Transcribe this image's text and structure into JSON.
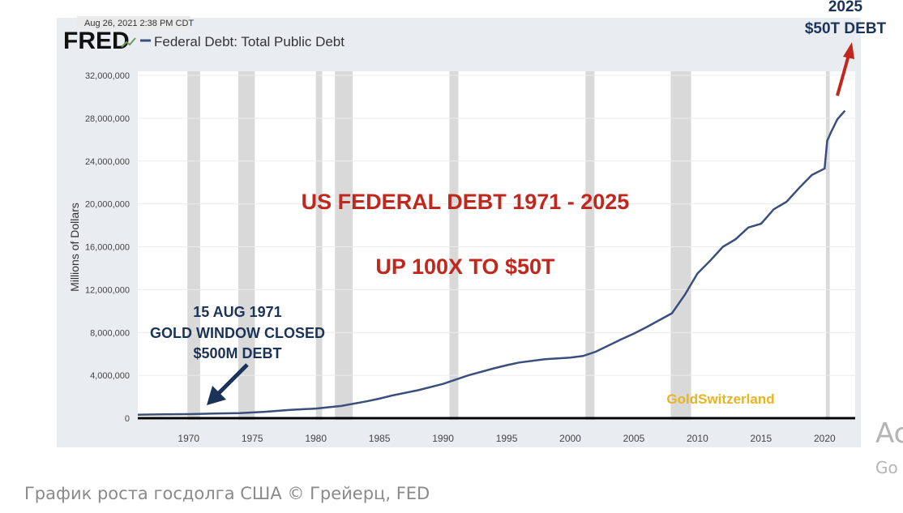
{
  "chart_data": {
    "type": "line",
    "source_logo": "FRED",
    "timestamp": "Aug 26, 2021 2:38 PM CDT",
    "legend": "Federal Debt: Total Public Debt",
    "ylabel": "Millions of Dollars",
    "xlabel": "",
    "xlim": [
      1966,
      2022.4
    ],
    "ylim": [
      0,
      32000000
    ],
    "grid": true,
    "x_ticks": [
      "1970",
      "1975",
      "1980",
      "1985",
      "1990",
      "1995",
      "2000",
      "2005",
      "2010",
      "2015",
      "2020"
    ],
    "y_ticks": [
      "0",
      "4,000,000",
      "8,000,000",
      "12,000,000",
      "16,000,000",
      "20,000,000",
      "24,000,000",
      "28,000,000",
      "32,000,000"
    ],
    "recessions": [
      [
        1969.9,
        1970.9
      ],
      [
        1973.9,
        1975.2
      ],
      [
        1980.0,
        1980.5
      ],
      [
        1981.5,
        1982.9
      ],
      [
        1990.5,
        1991.2
      ],
      [
        2001.2,
        2001.9
      ],
      [
        2007.9,
        2009.5
      ],
      [
        2020.1,
        2020.4
      ]
    ],
    "series": [
      {
        "color": "#3b4f7d",
        "x": [
          1966,
          1968,
          1970,
          1972,
          1974,
          1976,
          1978,
          1980,
          1982,
          1984,
          1985,
          1986,
          1988,
          1990,
          1992,
          1994,
          1995,
          1996,
          1998,
          2000,
          2001,
          2002,
          2004,
          2005,
          2006,
          2008,
          2009,
          2010,
          2011,
          2012,
          2013,
          2014,
          2015,
          2016,
          2017,
          2018,
          2019,
          2020.0,
          2020.2,
          2020.5,
          2021,
          2021.6
        ],
        "y": [
          320000,
          360000,
          380000,
          430000,
          480000,
          600000,
          770000,
          900000,
          1140000,
          1570000,
          1820000,
          2120000,
          2600000,
          3200000,
          4000000,
          4650000,
          4950000,
          5200000,
          5500000,
          5650000,
          5800000,
          6200000,
          7350000,
          7900000,
          8500000,
          9800000,
          11500000,
          13500000,
          14700000,
          16000000,
          16700000,
          17800000,
          18150000,
          19500000,
          20200000,
          21500000,
          22700000,
          23300000,
          25900000,
          26700000,
          27900000,
          28700000
        ]
      }
    ],
    "annotations": {
      "title_line1": "US FEDERAL DEBT 1971 - 2025",
      "title_line2": "UP 100X TO $50T",
      "gold_line1": "15 AUG 1971",
      "gold_line2": "GOLD WINDOW CLOSED",
      "gold_line3": "$500M DEBT",
      "target_year": "2025",
      "target_value": "$50T DEBT",
      "watermark": "GoldSwitzerland"
    },
    "colors": {
      "annotation_red": "#c0281e",
      "annotation_navy": "#1b3358",
      "watermark": "#e8b422",
      "recession": "#d9d9d9"
    }
  },
  "page": {
    "caption": "График роста госдолга США © Грейерц, FED",
    "side_text_1": "Ac",
    "side_text_2": "Go"
  }
}
